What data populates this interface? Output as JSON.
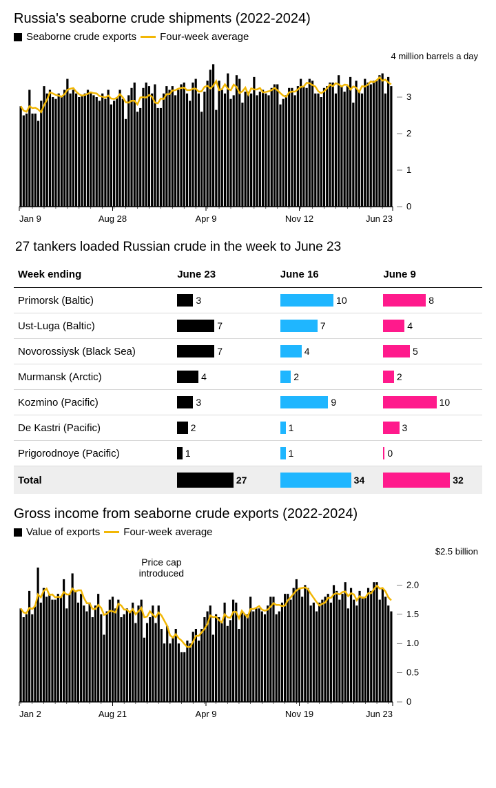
{
  "colors": {
    "bar": "#000000",
    "line": "#f2b705",
    "tbl_c1": "#000000",
    "tbl_c2": "#1fb6ff",
    "tbl_c3": "#ff1a8c",
    "grid": "#000000",
    "total_bg": "#eeeeee"
  },
  "chart1": {
    "title": "Russia's seaborne crude shipments (2022-2024)",
    "legend_bar": "Seaborne crude exports",
    "legend_line": "Four-week average",
    "y_top_label": "4 million barrels a day",
    "y_ticks": [
      0,
      1,
      2,
      3
    ],
    "y_max": 4,
    "x_labels": [
      "Jan 9",
      "Aug 28",
      "Apr 9",
      "Nov 12",
      "Jun 23"
    ],
    "bars": [
      2.75,
      2.5,
      2.55,
      3.2,
      2.55,
      2.55,
      2.35,
      2.9,
      3.3,
      3.1,
      3.2,
      3.0,
      2.95,
      3.1,
      3.0,
      3.2,
      3.5,
      3.1,
      3.2,
      3.1,
      3.0,
      3.05,
      3.1,
      3.2,
      3.15,
      3.05,
      3.0,
      2.9,
      3.1,
      2.95,
      3.2,
      2.8,
      2.9,
      3.0,
      3.2,
      2.95,
      2.4,
      3.05,
      3.25,
      3.4,
      2.6,
      2.7,
      3.25,
      3.4,
      3.3,
      3.1,
      3.35,
      2.7,
      2.7,
      3.1,
      3.3,
      3.2,
      3.3,
      3.05,
      3.2,
      3.35,
      3.4,
      3.1,
      2.9,
      3.4,
      3.5,
      3.1,
      2.6,
      3.15,
      3.45,
      3.75,
      3.9,
      2.65,
      3.45,
      3.2,
      3.1,
      3.65,
      2.95,
      3.05,
      3.6,
      3.5,
      2.85,
      3.15,
      3.15,
      3.1,
      3.55,
      3.05,
      3.15,
      3.2,
      3.1,
      3.05,
      3.25,
      3.35,
      3.35,
      2.8,
      2.95,
      3.05,
      3.25,
      3.25,
      3.05,
      3.3,
      3.5,
      3.3,
      3.25,
      3.5,
      3.45,
      3.1,
      3.1,
      3.0,
      3.25,
      3.3,
      3.4,
      3.4,
      3.1,
      3.6,
      3.3,
      3.15,
      3.3,
      3.55,
      2.85,
      3.45,
      3.15,
      3.1,
      3.5,
      3.4,
      3.35,
      3.45,
      3.45,
      3.6,
      3.65,
      3.1,
      3.55,
      3.3
    ],
    "avg": [
      2.75,
      2.63,
      2.6,
      2.75,
      2.7,
      2.71,
      2.66,
      2.59,
      2.78,
      2.93,
      3.13,
      3.1,
      3.06,
      3.04,
      3.01,
      3.08,
      3.2,
      3.23,
      3.25,
      3.15,
      3.08,
      3.04,
      3.06,
      3.09,
      3.13,
      3.11,
      3.1,
      3.03,
      3.01,
      2.99,
      3.04,
      2.96,
      2.95,
      2.98,
      3.08,
      2.99,
      2.86,
      2.85,
      2.9,
      2.9,
      2.8,
      2.99,
      3.0,
      2.99,
      3.06,
      3.01,
      2.85,
      2.83,
      2.96,
      2.95,
      3.08,
      3.08,
      3.18,
      3.19,
      3.23,
      3.25,
      3.26,
      3.19,
      3.19,
      3.23,
      3.23,
      3.15,
      3.16,
      3.28,
      3.31,
      3.24,
      3.31,
      3.44,
      3.19,
      3.22,
      3.35,
      3.23,
      3.19,
      3.34,
      3.28,
      3.11,
      3.16,
      3.26,
      3.07,
      3.24,
      3.21,
      3.21,
      3.25,
      3.13,
      3.14,
      3.16,
      3.19,
      3.25,
      3.19,
      3.11,
      3.04,
      3.01,
      3.13,
      3.15,
      3.15,
      3.21,
      3.28,
      3.29,
      3.39,
      3.38,
      3.33,
      3.29,
      3.16,
      3.11,
      3.16,
      3.24,
      3.34,
      3.3,
      3.38,
      3.35,
      3.29,
      3.34,
      3.33,
      3.21,
      3.29,
      3.26,
      3.14,
      3.3,
      3.29,
      3.34,
      3.43,
      3.41,
      3.46,
      3.54,
      3.45,
      3.48,
      3.4,
      3.35
    ]
  },
  "table": {
    "title": "27 tankers loaded Russian crude in the week to June 23",
    "col_header": "Week ending",
    "columns": [
      "June 23",
      "June 16",
      "June 9"
    ],
    "bar_max": 11,
    "total_bar_max": 38,
    "rows": [
      {
        "port": "Primorsk (Baltic)",
        "vals": [
          3,
          10,
          8
        ]
      },
      {
        "port": "Ust-Luga (Baltic)",
        "vals": [
          7,
          7,
          4
        ]
      },
      {
        "port": "Novorossiysk (Black Sea)",
        "vals": [
          7,
          4,
          5
        ]
      },
      {
        "port": "Murmansk (Arctic)",
        "vals": [
          4,
          2,
          2
        ]
      },
      {
        "port": "Kozmino (Pacific)",
        "vals": [
          3,
          9,
          10
        ]
      },
      {
        "port": "De Kastri (Pacific)",
        "vals": [
          2,
          1,
          3
        ]
      },
      {
        "port": "Prigorodnoye (Pacific)",
        "vals": [
          1,
          1,
          0
        ]
      }
    ],
    "total_label": "Total",
    "totals": [
      27,
      34,
      32
    ]
  },
  "chart2": {
    "title": "Gross income from seaborne crude exports (2022-2024)",
    "legend_bar": "Value of exports",
    "legend_line": "Four-week average",
    "y_top_label": "$2.5 billion",
    "y_ticks_labels": [
      "0",
      "0.5",
      "1.0",
      "1.5",
      "2.0"
    ],
    "y_ticks_vals": [
      0,
      0.5,
      1.0,
      1.5,
      2.0
    ],
    "y_max": 2.5,
    "x_labels": [
      "Jan 2",
      "Aug 21",
      "Apr 9",
      "Nov 19",
      "Jun 23"
    ],
    "annotation": "Price cap\nintroduced",
    "annotation_idx": 49,
    "bars": [
      1.6,
      1.45,
      1.5,
      1.9,
      1.5,
      1.65,
      2.3,
      1.7,
      1.95,
      1.8,
      1.85,
      1.75,
      1.75,
      1.85,
      1.8,
      2.1,
      1.6,
      1.85,
      2.2,
      1.9,
      1.7,
      1.85,
      1.65,
      1.55,
      1.7,
      1.45,
      1.65,
      1.85,
      1.5,
      1.15,
      1.55,
      1.75,
      1.8,
      1.6,
      1.75,
      1.45,
      1.5,
      1.6,
      1.55,
      1.7,
      1.35,
      1.65,
      1.75,
      1.1,
      1.35,
      1.45,
      1.65,
      1.35,
      1.65,
      1.25,
      1.0,
      1.3,
      1.0,
      1.1,
      1.25,
      1.0,
      0.85,
      0.85,
      1.05,
      1.0,
      1.2,
      1.25,
      1.05,
      1.25,
      1.45,
      1.55,
      1.65,
      1.15,
      1.5,
      1.45,
      1.35,
      1.7,
      1.3,
      1.4,
      1.75,
      1.7,
      1.25,
      1.55,
      1.5,
      1.5,
      1.8,
      1.55,
      1.6,
      1.6,
      1.55,
      1.5,
      1.65,
      1.8,
      1.8,
      1.5,
      1.55,
      1.7,
      1.85,
      1.85,
      1.75,
      1.95,
      2.1,
      1.95,
      1.8,
      2.0,
      1.95,
      1.65,
      1.7,
      1.55,
      1.7,
      1.75,
      1.8,
      1.85,
      1.7,
      2.0,
      1.9,
      1.75,
      1.85,
      2.05,
      1.6,
      1.95,
      1.75,
      1.65,
      1.9,
      1.8,
      1.8,
      1.95,
      1.9,
      2.05,
      2.05,
      1.75,
      1.95,
      1.8,
      1.65,
      1.55
    ],
    "avg": [
      1.6,
      1.53,
      1.52,
      1.61,
      1.59,
      1.64,
      1.84,
      1.79,
      1.9,
      1.94,
      1.83,
      1.84,
      1.79,
      1.8,
      1.79,
      1.88,
      1.84,
      1.84,
      1.94,
      1.89,
      1.91,
      1.91,
      1.78,
      1.69,
      1.69,
      1.59,
      1.59,
      1.66,
      1.61,
      1.49,
      1.51,
      1.56,
      1.55,
      1.53,
      1.68,
      1.65,
      1.58,
      1.58,
      1.53,
      1.59,
      1.5,
      1.55,
      1.61,
      1.45,
      1.46,
      1.55,
      1.49,
      1.45,
      1.53,
      1.48,
      1.39,
      1.3,
      1.14,
      1.1,
      1.16,
      1.09,
      1.05,
      0.99,
      0.94,
      0.94,
      1.03,
      1.13,
      1.13,
      1.19,
      1.25,
      1.33,
      1.48,
      1.45,
      1.46,
      1.4,
      1.36,
      1.5,
      1.45,
      1.44,
      1.54,
      1.54,
      1.43,
      1.56,
      1.5,
      1.45,
      1.59,
      1.59,
      1.61,
      1.64,
      1.58,
      1.56,
      1.58,
      1.63,
      1.69,
      1.66,
      1.66,
      1.64,
      1.65,
      1.74,
      1.79,
      1.85,
      1.91,
      1.94,
      1.95,
      1.96,
      1.93,
      1.85,
      1.78,
      1.71,
      1.65,
      1.68,
      1.7,
      1.78,
      1.78,
      1.84,
      1.86,
      1.84,
      1.88,
      1.89,
      1.81,
      1.86,
      1.84,
      1.74,
      1.81,
      1.78,
      1.79,
      1.86,
      1.86,
      1.93,
      1.99,
      1.94,
      1.95,
      1.89,
      1.79,
      1.74
    ]
  }
}
